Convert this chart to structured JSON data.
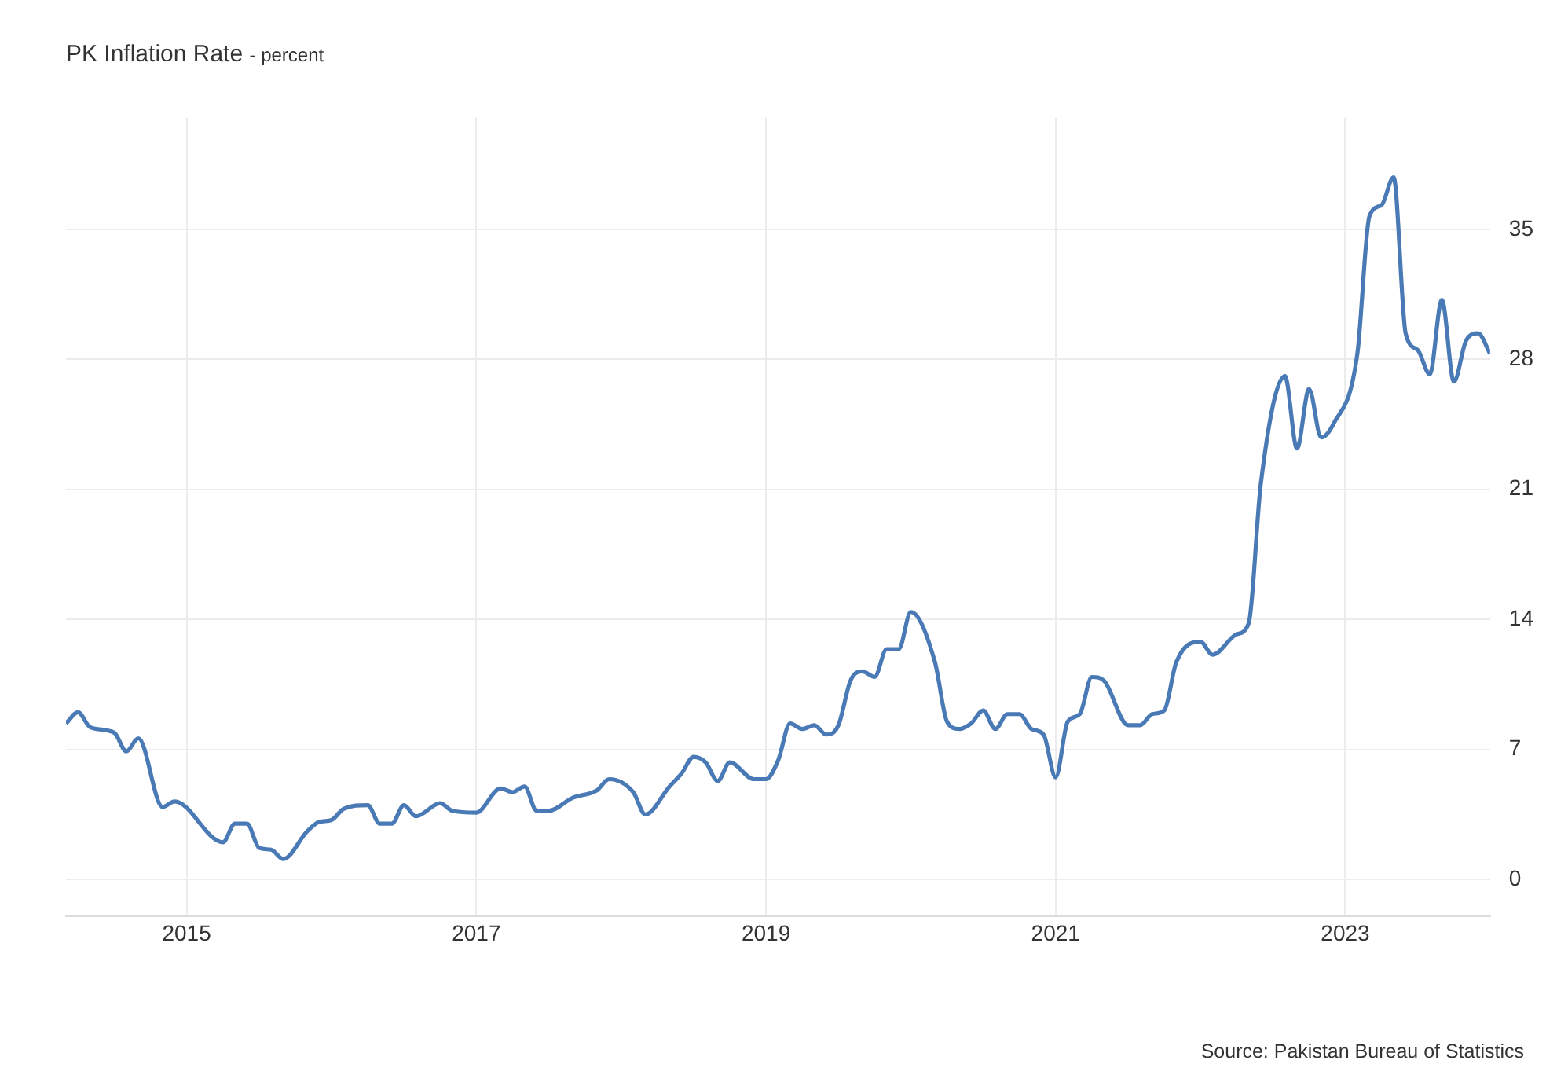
{
  "chart_data": {
    "type": "line",
    "title": "PK Inflation Rate",
    "subtitle": "- percent",
    "annotations": [
      "Source: Pakistan Bureau of Statistics"
    ],
    "x": [
      "2014-03",
      "2014-04",
      "2014-05",
      "2014-07",
      "2014-08",
      "2014-09",
      "2014-11",
      "2014-12",
      "2015-04",
      "2015-05",
      "2015-06",
      "2015-07",
      "2015-08",
      "2015-09",
      "2015-11",
      "2015-12",
      "2016-01",
      "2016-02",
      "2016-04",
      "2016-05",
      "2016-06",
      "2016-07",
      "2016-08",
      "2016-10",
      "2016-11",
      "2017-01",
      "2017-03",
      "2017-04",
      "2017-05",
      "2017-06",
      "2017-07",
      "2017-09",
      "2017-11",
      "2017-12",
      "2018-02",
      "2018-03",
      "2018-05",
      "2018-06",
      "2018-07",
      "2018-08",
      "2018-09",
      "2018-10",
      "2018-12",
      "2019-01",
      "2019-02",
      "2019-03",
      "2019-04",
      "2019-05",
      "2019-06",
      "2019-07",
      "2019-08",
      "2019-09",
      "2019-10",
      "2019-11",
      "2019-12",
      "2020-01",
      "2020-03",
      "2020-04",
      "2020-05",
      "2020-06",
      "2020-07",
      "2020-08",
      "2020-09",
      "2020-10",
      "2020-11",
      "2020-12",
      "2021-01",
      "2021-02",
      "2021-03",
      "2021-04",
      "2021-05",
      "2021-07",
      "2021-08",
      "2021-09",
      "2021-10",
      "2021-11",
      "2022-01",
      "2022-02",
      "2022-04",
      "2022-05",
      "2022-06",
      "2022-08",
      "2022-09",
      "2022-10",
      "2022-11",
      "2022-12",
      "2023-02",
      "2023-03",
      "2023-04",
      "2023-05",
      "2023-06",
      "2023-07",
      "2023-08",
      "2023-09",
      "2023-10",
      "2023-11",
      "2023-12",
      "2024-01"
    ],
    "series": [
      {
        "color": "#4a7ab5",
        "values": [
          8.4,
          9.0,
          8.2,
          7.9,
          6.9,
          7.6,
          3.9,
          4.2,
          2.0,
          3.0,
          3.0,
          1.7,
          1.6,
          1.1,
          2.6,
          3.1,
          3.2,
          3.8,
          4.0,
          3.0,
          3.0,
          4.0,
          3.4,
          4.1,
          3.7,
          3.6,
          4.9,
          4.7,
          5.0,
          3.7,
          3.7,
          4.4,
          4.8,
          5.4,
          4.7,
          3.5,
          5.0,
          5.7,
          6.6,
          6.3,
          5.3,
          6.3,
          5.4,
          5.4,
          6.4,
          8.4,
          8.1,
          8.3,
          7.8,
          8.3,
          10.7,
          11.2,
          10.9,
          12.4,
          12.4,
          14.4,
          11.7,
          8.5,
          8.1,
          8.4,
          9.1,
          8.1,
          8.9,
          8.9,
          8.1,
          7.8,
          5.5,
          8.5,
          8.9,
          10.9,
          10.7,
          8.3,
          8.3,
          8.9,
          9.1,
          11.7,
          12.8,
          12.1,
          13.2,
          13.8,
          21.3,
          27.1,
          23.2,
          26.4,
          23.8,
          24.5,
          28.3,
          35.7,
          36.3,
          37.8,
          29.4,
          28.5,
          27.2,
          31.2,
          26.8,
          29.0,
          29.4,
          28.3
        ]
      }
    ],
    "xlim": [
      "2014-03",
      "2024-01"
    ],
    "xticks": [
      {
        "value": "2015-01",
        "label": "2015"
      },
      {
        "value": "2017-01",
        "label": "2017"
      },
      {
        "value": "2019-01",
        "label": "2019"
      },
      {
        "value": "2021-01",
        "label": "2021"
      },
      {
        "value": "2023-01",
        "label": "2023"
      }
    ],
    "ylim": [
      -2,
      41
    ],
    "yticks": [
      0,
      7,
      14,
      21,
      28,
      35
    ],
    "grid": true,
    "legend": false,
    "marker": "none",
    "line_style": "solid"
  }
}
